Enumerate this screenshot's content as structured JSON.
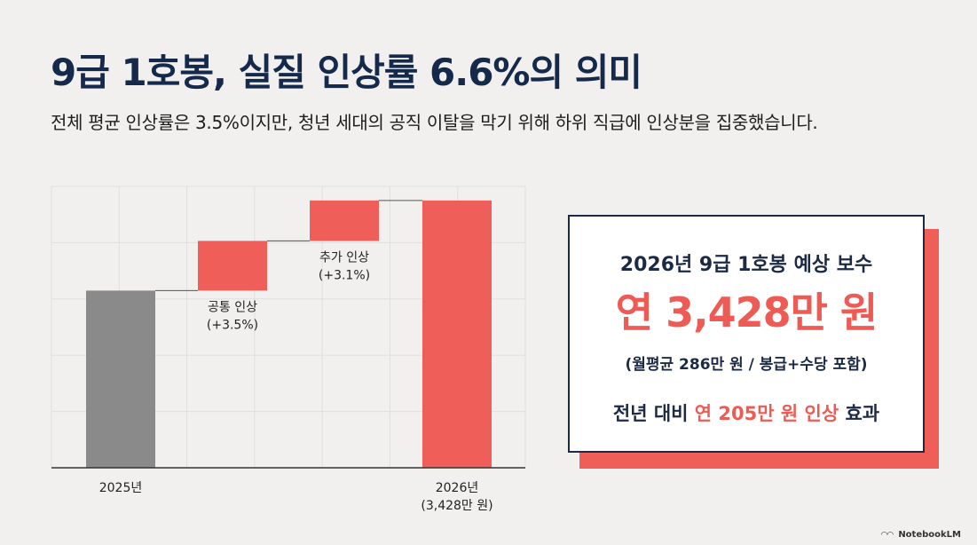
{
  "title": "9급 1호봉, 실질 인상률 6.6%의 의미",
  "subtitle": "전체 평균 인상률은 3.5%이지만, 청년 세대의 공직 이탈을 막기 위해 하위 직급에 인상분을 집중했습니다.",
  "chart_data": {
    "type": "waterfall",
    "unit": "만 원",
    "ylim": [
      2820,
      3460
    ],
    "grid": true,
    "steps": [
      {
        "kind": "total",
        "value": 3223,
        "color": "#8a8a8a",
        "labels": [
          "2025년"
        ],
        "label_position": "below-axis"
      },
      {
        "kind": "delta",
        "value": 113,
        "color": "#ef5e58",
        "labels": [
          "공통 인상",
          "(+3.5%)"
        ],
        "label_position": "below-bar"
      },
      {
        "kind": "delta",
        "value": 92,
        "color": "#ef5e58",
        "labels": [
          "추가 인상",
          "(+3.1%)"
        ],
        "label_position": "below-bar"
      },
      {
        "kind": "total",
        "value": 3428,
        "color": "#ef5e58",
        "labels": [
          "2026년",
          "(3,428만 원)"
        ],
        "label_position": "below-axis"
      }
    ]
  },
  "card": {
    "label": "2026년 9급 1호봉 예상 보수",
    "value": "연 3,428만 원",
    "note": "(월평균 286만 원 / 봉급+수당 포함)",
    "effect_prefix": "전년 대비 ",
    "effect_highlight": "연 205만 원 인상",
    "effect_suffix": " 효과"
  },
  "brand": "NotebookLM",
  "colors": {
    "accent": "#ef5e58",
    "navy": "#1c2a44",
    "gray_bar": "#8a8a8a",
    "background": "#f1f0ee"
  }
}
